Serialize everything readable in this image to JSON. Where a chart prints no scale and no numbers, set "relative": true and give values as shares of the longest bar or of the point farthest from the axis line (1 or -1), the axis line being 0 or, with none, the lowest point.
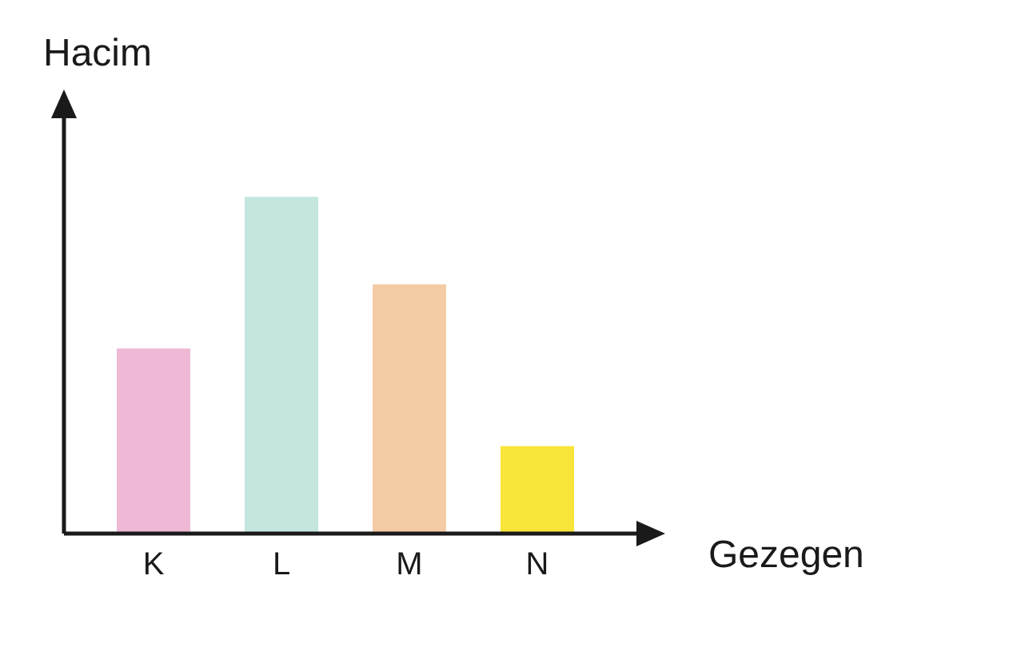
{
  "chart_data": {
    "type": "bar",
    "relative": true,
    "xlabel": "Gezegen",
    "ylabel": "Hacim",
    "categories": [
      "K",
      "L",
      "M",
      "N"
    ],
    "values": [
      0.55,
      1,
      0.74,
      0.26
    ],
    "colors": [
      "#efb8d4",
      "#c4e6df",
      "#f5cba6",
      "#f9e53a"
    ],
    "grid": false,
    "legend": false
  }
}
